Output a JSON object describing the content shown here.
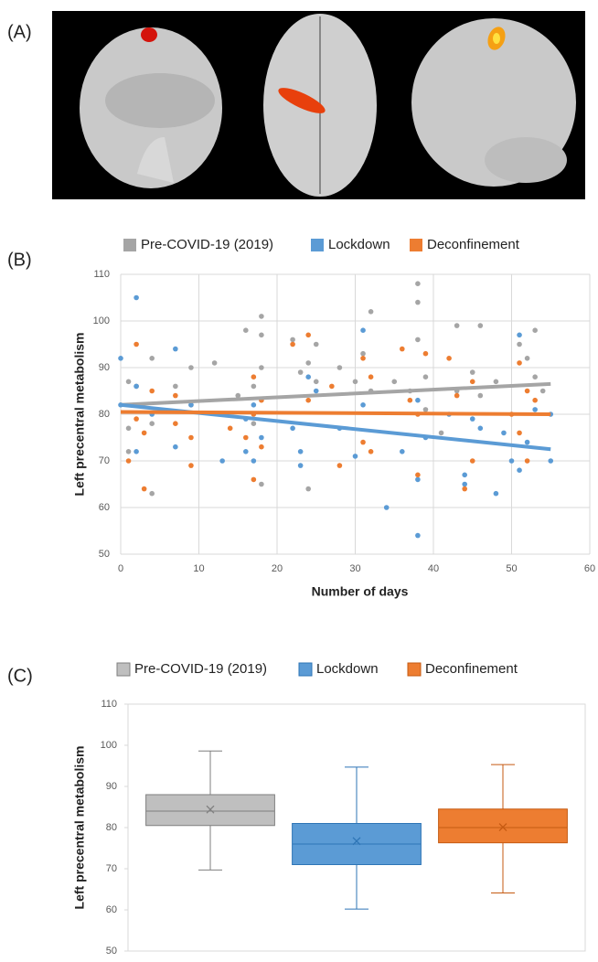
{
  "panel_a": {
    "label": "(A)"
  },
  "chart_data": [
    {
      "type": "scatter",
      "label": "(B)",
      "x_label": "Number of days",
      "y_label": "Left precentral metabolism",
      "xlim": [
        0,
        60
      ],
      "xticks": [
        0,
        10,
        20,
        30,
        40,
        50,
        60
      ],
      "ylim": [
        50,
        110
      ],
      "yticks": [
        50,
        60,
        70,
        80,
        90,
        100,
        110
      ],
      "grid": true,
      "legend": "top",
      "series": [
        {
          "name": "Pre-COVID-19 (2019)",
          "color": "#a5a5a5",
          "x": [
            1,
            1,
            1,
            2,
            4,
            4,
            4,
            7,
            9,
            9,
            12,
            15,
            16,
            17,
            17,
            18,
            18,
            18,
            18,
            22,
            23,
            24,
            24,
            25,
            25,
            28,
            30,
            31,
            32,
            32,
            35,
            37,
            38,
            38,
            38,
            39,
            39,
            41,
            43,
            43,
            45,
            46,
            46,
            48,
            51,
            52,
            53,
            53,
            54
          ],
          "values": [
            87,
            77,
            72,
            86,
            92,
            78,
            63,
            86,
            90,
            82,
            91,
            84,
            98,
            86,
            78,
            101,
            97,
            90,
            65,
            96,
            89,
            91,
            64,
            95,
            87,
            90,
            87,
            93,
            102,
            85,
            87,
            85,
            108,
            104,
            96,
            88,
            81,
            76,
            99,
            85,
            89,
            99,
            84,
            87,
            95,
            92,
            98,
            88,
            85
          ],
          "trend": {
            "x": [
              0,
              55
            ],
            "values": [
              82,
              86.5
            ]
          }
        },
        {
          "name": "Lockdown",
          "color": "#5b9bd5",
          "x": [
            0,
            0,
            2,
            2,
            2,
            4,
            7,
            7,
            9,
            13,
            16,
            16,
            17,
            17,
            18,
            22,
            23,
            23,
            24,
            25,
            28,
            30,
            31,
            31,
            34,
            36,
            38,
            38,
            38,
            39,
            42,
            44,
            44,
            45,
            46,
            48,
            49,
            50,
            51,
            51,
            52,
            53,
            55,
            55
          ],
          "values": [
            92,
            82,
            105,
            86,
            72,
            80,
            94,
            73,
            82,
            70,
            79,
            72,
            70,
            82,
            75,
            77,
            72,
            69,
            88,
            85,
            77,
            71,
            98,
            82,
            60,
            72,
            54,
            66,
            83,
            75,
            80,
            67,
            65,
            79,
            77,
            63,
            76,
            70,
            97,
            68,
            74,
            81,
            80,
            70
          ],
          "trend": {
            "x": [
              0,
              55
            ],
            "values": [
              82,
              72.5
            ]
          }
        },
        {
          "name": "Deconfinement",
          "color": "#ed7d31",
          "x": [
            1,
            2,
            2,
            3,
            3,
            4,
            7,
            7,
            9,
            9,
            14,
            16,
            17,
            17,
            17,
            18,
            18,
            22,
            24,
            24,
            27,
            28,
            31,
            31,
            32,
            32,
            36,
            37,
            38,
            38,
            39,
            42,
            43,
            44,
            45,
            45,
            50,
            51,
            51,
            52,
            52,
            53
          ],
          "values": [
            70,
            95,
            79,
            64,
            76,
            85,
            84,
            78,
            75,
            69,
            77,
            75,
            66,
            88,
            80,
            83,
            73,
            95,
            83,
            97,
            86,
            69,
            92,
            74,
            88,
            72,
            94,
            83,
            67,
            80,
            93,
            92,
            84,
            64,
            87,
            70,
            80,
            91,
            76,
            85,
            70,
            83
          ],
          "trend": {
            "x": [
              0,
              55
            ],
            "values": [
              80.5,
              80
            ]
          }
        }
      ]
    },
    {
      "type": "box",
      "label": "(C)",
      "y_label": "Left precentral metabolism",
      "ylim": [
        50,
        110
      ],
      "yticks": [
        50,
        60,
        70,
        80,
        90,
        100,
        110
      ],
      "legend": "top",
      "series": [
        {
          "name": "Pre-COVID-19 (2019)",
          "color": "#bfbfbf",
          "edge": "#7f7f7f",
          "whislo": 69.7,
          "q1": 80.5,
          "med": 84,
          "q3": 88,
          "whishi": 98.6,
          "mean": 84.4
        },
        {
          "name": "Lockdown",
          "color": "#5b9bd5",
          "edge": "#2e75b6",
          "whislo": 60.2,
          "q1": 71,
          "med": 76,
          "q3": 81,
          "whishi": 94.7,
          "mean": 76.7
        },
        {
          "name": "Deconfinement",
          "color": "#ed7d31",
          "edge": "#c55a11",
          "whislo": 64.1,
          "q1": 76.3,
          "med": 80,
          "q3": 84.5,
          "whishi": 95.3,
          "mean": 80.1
        }
      ]
    }
  ]
}
